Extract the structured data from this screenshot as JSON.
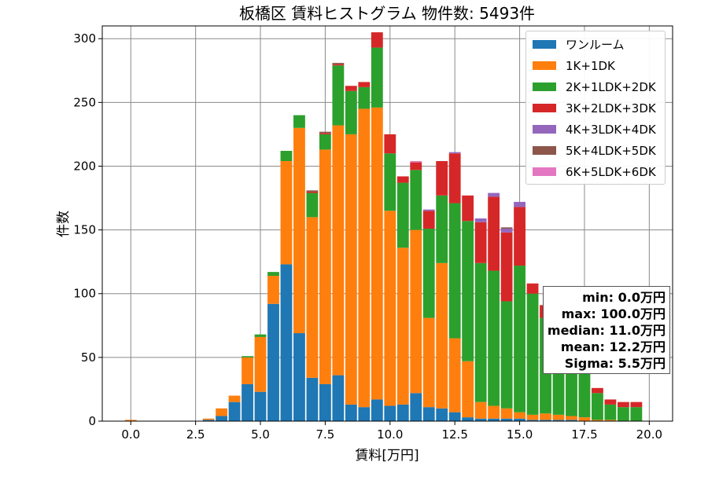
{
  "chart_data": {
    "type": "bar",
    "stacked": true,
    "title": "板橋区 賃料ヒストグラム  物件数: 5493件",
    "xlabel": "賃料[万円]",
    "ylabel": "件数",
    "xlim": [
      -1.1,
      20.9
    ],
    "ylim": [
      0,
      310
    ],
    "xticks": [
      0.0,
      2.5,
      5.0,
      7.5,
      10.0,
      12.5,
      15.0,
      17.5,
      20.0
    ],
    "xtick_labels": [
      "0.0",
      "2.5",
      "5.0",
      "7.5",
      "10.0",
      "12.5",
      "15.0",
      "17.5",
      "20.0"
    ],
    "yticks": [
      0,
      50,
      100,
      150,
      200,
      250,
      300
    ],
    "ytick_labels": [
      "0",
      "50",
      "100",
      "150",
      "200",
      "250",
      "300"
    ],
    "grid": true,
    "legend_position": "top-right",
    "bin_width": 0.5,
    "x": [
      0.0,
      0.5,
      1.0,
      1.5,
      2.0,
      2.5,
      3.0,
      3.5,
      4.0,
      4.5,
      5.0,
      5.5,
      6.0,
      6.5,
      7.0,
      7.5,
      8.0,
      8.5,
      9.0,
      9.5,
      10.0,
      10.5,
      11.0,
      11.5,
      12.0,
      12.5,
      13.0,
      13.5,
      14.0,
      14.5,
      15.0,
      15.5,
      16.0,
      16.5,
      17.0,
      17.5,
      18.0,
      18.5,
      19.0,
      19.5
    ],
    "series": [
      {
        "name": "ワンルーム",
        "color": "#1f77b4",
        "values": [
          0,
          0,
          0,
          0,
          0,
          0,
          1,
          4,
          15,
          29,
          23,
          92,
          123,
          69,
          34,
          29,
          36,
          13,
          11,
          17,
          12,
          13,
          22,
          11,
          10,
          7,
          3,
          2,
          2,
          2,
          2,
          1,
          1,
          1,
          1,
          0,
          0,
          0,
          0,
          0
        ]
      },
      {
        "name": "1K+1DK",
        "color": "#ff7f0e",
        "values": [
          1,
          0,
          0,
          0,
          0,
          0,
          1,
          6,
          5,
          21,
          43,
          22,
          81,
          161,
          126,
          184,
          196,
          212,
          234,
          229,
          153,
          123,
          128,
          70,
          114,
          58,
          44,
          13,
          10,
          8,
          5,
          4,
          5,
          4,
          3,
          3,
          1,
          1,
          0,
          0
        ]
      },
      {
        "name": "2K+1LDK+2DK",
        "color": "#2ca02c",
        "values": [
          0,
          0,
          0,
          0,
          0,
          0,
          0,
          0,
          0,
          1,
          2,
          3,
          8,
          10,
          19,
          12,
          47,
          34,
          17,
          47,
          45,
          51,
          47,
          70,
          53,
          106,
          110,
          109,
          106,
          84,
          115,
          95,
          75,
          60,
          51,
          45,
          21,
          12,
          11,
          11
        ]
      },
      {
        "name": "3K+2LDK+3DK",
        "color": "#d62728",
        "values": [
          0,
          0,
          0,
          0,
          0,
          0,
          0,
          0,
          0,
          0,
          0,
          0,
          0,
          0,
          1,
          1,
          1,
          4,
          4,
          12,
          15,
          5,
          6,
          14,
          27,
          39,
          20,
          32,
          58,
          54,
          46,
          8,
          10,
          8,
          5,
          4,
          4,
          4,
          4,
          4
        ]
      },
      {
        "name": "4K+3LDK+4DK",
        "color": "#9467bd",
        "values": [
          0,
          0,
          0,
          0,
          0,
          0,
          0,
          0,
          0,
          0,
          0,
          0,
          0,
          0,
          0,
          0,
          0,
          0,
          0,
          0,
          0,
          0,
          0,
          1,
          0,
          1,
          0,
          3,
          3,
          3,
          4,
          0,
          0,
          0,
          0,
          0,
          0,
          0,
          0,
          0
        ]
      },
      {
        "name": "5K+4LDK+5DK",
        "color": "#8c564b",
        "values": [
          0,
          0,
          0,
          0,
          0,
          0,
          0,
          0,
          0,
          0,
          0,
          0,
          0,
          0,
          1,
          1,
          1,
          0,
          0,
          0,
          0,
          0,
          0,
          0,
          0,
          0,
          0,
          0,
          0,
          1,
          0,
          0,
          0,
          0,
          0,
          0,
          0,
          0,
          0,
          0
        ]
      },
      {
        "name": "6K+5LDK+6DK",
        "color": "#e377c2",
        "values": [
          0,
          0,
          0,
          0,
          0,
          0,
          0,
          0,
          0,
          0,
          0,
          0,
          0,
          0,
          0,
          0,
          0,
          0,
          0,
          0,
          0,
          0,
          1,
          0,
          0,
          0,
          0,
          0,
          0,
          0,
          0,
          0,
          0,
          0,
          0,
          0,
          0,
          0,
          0,
          0
        ]
      }
    ],
    "annotations": {
      "min": "min: 0.0万円",
      "max": "max: 100.0万円",
      "median": "median: 11.0万円",
      "mean": "mean: 12.2万円",
      "sigma": "Sigma: 5.5万円"
    }
  }
}
